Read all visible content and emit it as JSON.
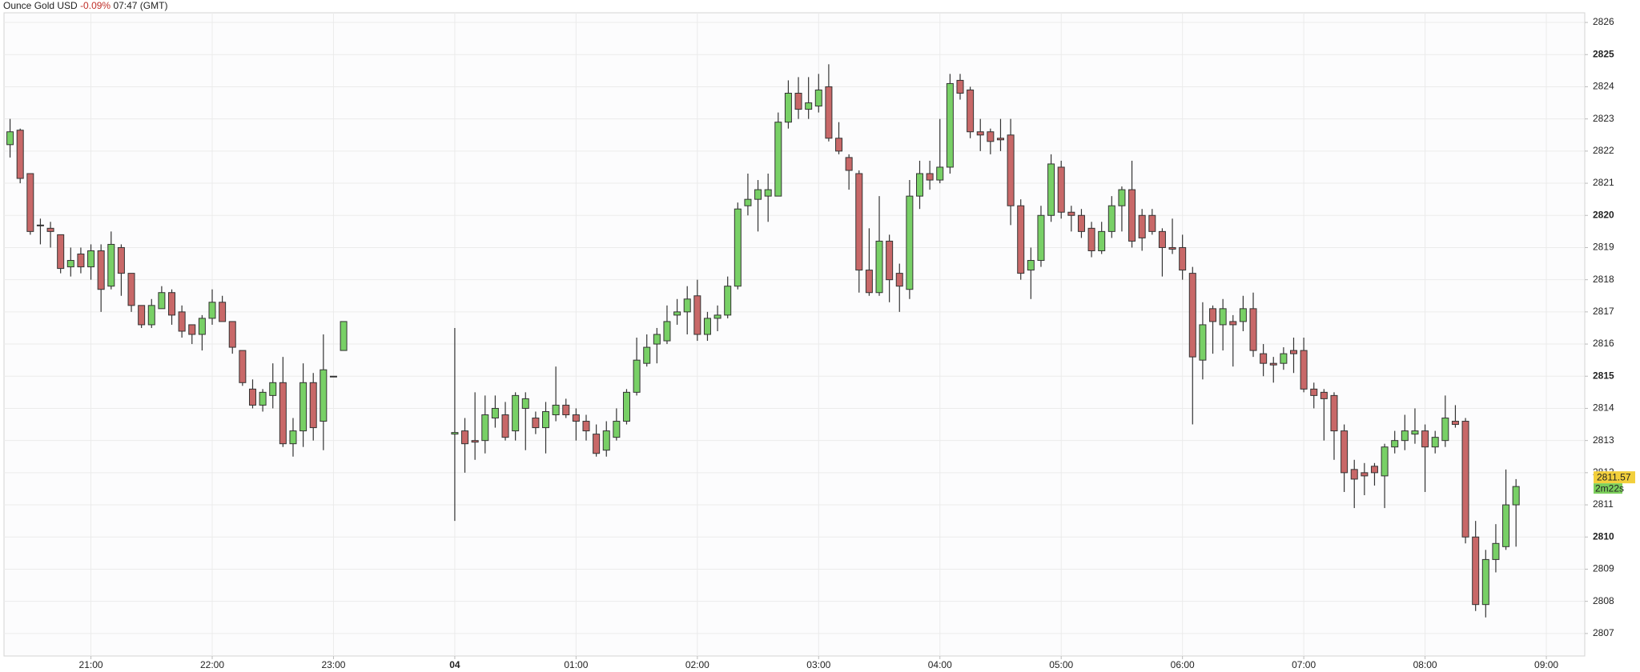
{
  "header": {
    "instrument": "Ounce Gold USD",
    "change": "-0.09%",
    "time": "07:47 (GMT)"
  },
  "chart_data": {
    "type": "candlestick",
    "up_color": "#78d066",
    "down_color": "#c86868",
    "grid": true,
    "xlim": [
      1217,
      1999
    ],
    "xticks": [
      {
        "value": 1260,
        "label": "21:00"
      },
      {
        "value": 1320,
        "label": "22:00"
      },
      {
        "value": 1380,
        "label": "23:00"
      },
      {
        "value": 1440,
        "label": "04"
      },
      {
        "value": 1500,
        "label": "01:00"
      },
      {
        "value": 1560,
        "label": "02:00"
      },
      {
        "value": 1620,
        "label": "03:00"
      },
      {
        "value": 1680,
        "label": "04:00"
      },
      {
        "value": 1740,
        "label": "05:00"
      },
      {
        "value": 1800,
        "label": "06:00"
      },
      {
        "value": 1860,
        "label": "07:00"
      },
      {
        "value": 1920,
        "label": "08:00"
      },
      {
        "value": 1980,
        "label": "09:00"
      }
    ],
    "ylim": [
      2806.3,
      2826.3
    ],
    "yticks": [
      2807,
      2808,
      2809,
      2810,
      2811,
      2812,
      2813,
      2814,
      2815,
      2816,
      2817,
      2818,
      2819,
      2820,
      2821,
      2822,
      2823,
      2824,
      2825,
      2826
    ],
    "last_price": 2811.57,
    "countdown": "2m22s",
    "x": [
      1220,
      1225,
      1230,
      1235,
      1240,
      1245,
      1250,
      1255,
      1260,
      1265,
      1270,
      1275,
      1280,
      1285,
      1290,
      1295,
      1300,
      1305,
      1310,
      1315,
      1320,
      1325,
      1330,
      1335,
      1340,
      1345,
      1350,
      1355,
      1360,
      1365,
      1370,
      1375,
      1380,
      1385,
      1440,
      1445,
      1450,
      1455,
      1460,
      1465,
      1470,
      1475,
      1480,
      1485,
      1490,
      1495,
      1500,
      1505,
      1510,
      1515,
      1520,
      1525,
      1530,
      1535,
      1540,
      1545,
      1550,
      1555,
      1560,
      1565,
      1570,
      1575,
      1580,
      1585,
      1590,
      1595,
      1600,
      1605,
      1610,
      1615,
      1620,
      1625,
      1630,
      1635,
      1640,
      1645,
      1650,
      1655,
      1660,
      1665,
      1670,
      1675,
      1680,
      1685,
      1690,
      1695,
      1700,
      1705,
      1710,
      1715,
      1720,
      1725,
      1730,
      1735,
      1740,
      1745,
      1750,
      1755,
      1760,
      1765,
      1770,
      1775,
      1780,
      1785,
      1790,
      1795,
      1800,
      1805,
      1810,
      1815,
      1820,
      1825,
      1830,
      1835,
      1840,
      1845,
      1850,
      1855,
      1860,
      1865,
      1870,
      1875,
      1880,
      1885,
      1890,
      1895,
      1900,
      1905,
      1910,
      1915,
      1920,
      1925,
      1930,
      1935,
      1940,
      1945,
      1950,
      1955,
      1960,
      1965
    ],
    "open": [
      2822.2,
      2822.65,
      2821.3,
      2819.7,
      2819.6,
      2819.4,
      2818.4,
      2818.8,
      2818.4,
      2818.9,
      2817.8,
      2819.0,
      2818.2,
      2817.2,
      2816.6,
      2817.1,
      2817.6,
      2817.0,
      2816.6,
      2816.3,
      2816.8,
      2817.3,
      2816.7,
      2815.8,
      2814.6,
      2814.1,
      2814.4,
      2814.8,
      2812.9,
      2813.3,
      2814.8,
      2813.6,
      2815.0,
      2815.8,
      2813.2,
      2813.3,
      2813.0,
      2813.0,
      2813.7,
      2813.8,
      2813.3,
      2814.0,
      2813.7,
      2813.4,
      2813.8,
      2814.1,
      2813.8,
      2813.6,
      2813.2,
      2812.7,
      2813.1,
      2813.6,
      2814.5,
      2815.4,
      2816.0,
      2816.1,
      2816.9,
      2817.0,
      2817.5,
      2816.3,
      2816.8,
      2816.9,
      2817.8,
      2820.3,
      2820.5,
      2820.6,
      2820.6,
      2822.9,
      2823.8,
      2823.3,
      2823.4,
      2824.0,
      2822.4,
      2821.8,
      2821.3,
      2818.3,
      2817.6,
      2819.2,
      2818.2,
      2817.7,
      2820.6,
      2821.3,
      2821.1,
      2821.5,
      2824.2,
      2823.9,
      2822.6,
      2822.6,
      2822.4,
      2822.5,
      2820.3,
      2818.3,
      2818.6,
      2820.0,
      2821.5,
      2820.1,
      2820.0,
      2819.6,
      2818.9,
      2819.5,
      2820.3,
      2820.8,
      2820.0,
      2820.0,
      2819.5,
      2819.0,
      2819.0,
      2818.2,
      2815.5,
      2817.1,
      2816.6,
      2816.7,
      2816.7,
      2817.1,
      2815.7,
      2815.4,
      2815.4,
      2815.8,
      2815.8,
      2814.6,
      2814.5,
      2814.4,
      2813.3,
      2812.1,
      2812.0,
      2812.2,
      2811.9,
      2812.8,
      2813.0,
      2813.2,
      2813.3,
      2812.8,
      2813.0,
      2813.6,
      2813.6,
      2810.0,
      2807.9,
      2809.3,
      2809.7,
      2811.0
    ],
    "high": [
      2823.0,
      2822.7,
      2821.3,
      2819.9,
      2819.8,
      2819.4,
      2819.0,
      2819.0,
      2819.1,
      2819.1,
      2819.5,
      2819.1,
      2818.2,
      2817.2,
      2817.4,
      2817.8,
      2817.7,
      2817.2,
      2816.6,
      2816.9,
      2817.7,
      2817.5,
      2816.7,
      2815.8,
      2814.9,
      2814.6,
      2815.4,
      2815.6,
      2813.7,
      2815.4,
      2815.1,
      2816.3,
      2815.0,
      2816.7,
      2816.5,
      2813.7,
      2814.5,
      2814.4,
      2814.4,
      2814.2,
      2814.5,
      2814.5,
      2813.9,
      2814.2,
      2815.3,
      2814.3,
      2814.0,
      2813.8,
      2813.5,
      2813.6,
      2814.0,
      2814.6,
      2816.2,
      2816.3,
      2816.5,
      2817.2,
      2817.4,
      2817.8,
      2818.0,
      2817.0,
      2817.2,
      2818.1,
      2820.4,
      2821.3,
      2821.1,
      2821.3,
      2823.2,
      2824.2,
      2824.3,
      2824.3,
      2824.4,
      2824.7,
      2822.9,
      2821.9,
      2821.4,
      2819.6,
      2820.6,
      2819.4,
      2818.5,
      2821.1,
      2821.7,
      2821.7,
      2823.0,
      2824.4,
      2824.4,
      2824.0,
      2823.0,
      2822.7,
      2823.0,
      2823.0,
      2820.5,
      2819.0,
      2820.3,
      2821.9,
      2821.7,
      2820.3,
      2820.2,
      2819.8,
      2819.8,
      2820.6,
      2820.9,
      2821.7,
      2820.2,
      2820.2,
      2819.6,
      2819.9,
      2819.4,
      2818.4,
      2817.3,
      2817.2,
      2817.4,
      2816.9,
      2817.5,
      2817.6,
      2816.0,
      2815.6,
      2815.9,
      2816.2,
      2816.2,
      2814.8,
      2814.6,
      2814.5,
      2813.5,
      2812.4,
      2812.3,
      2812.3,
      2812.9,
      2813.3,
      2813.8,
      2814.0,
      2813.5,
      2813.3,
      2814.4,
      2814.1,
      2813.7,
      2810.5,
      2809.6,
      2810.4,
      2812.1,
      2811.8
    ],
    "low": [
      2821.8,
      2821.0,
      2819.4,
      2819.1,
      2819.0,
      2818.2,
      2818.1,
      2818.2,
      2818.0,
      2817.0,
      2817.7,
      2817.5,
      2817.0,
      2816.5,
      2816.5,
      2817.1,
      2816.6,
      2816.2,
      2816.0,
      2815.8,
      2816.6,
      2816.7,
      2815.7,
      2814.7,
      2814.0,
      2813.9,
      2814.0,
      2812.8,
      2812.5,
      2812.8,
      2813.0,
      2812.7,
      2815.0,
      2815.8,
      2810.5,
      2812.0,
      2812.4,
      2812.6,
      2813.4,
      2813.0,
      2813.0,
      2812.7,
      2813.2,
      2812.6,
      2813.6,
      2813.7,
      2813.0,
      2813.0,
      2812.5,
      2812.5,
      2813.0,
      2813.5,
      2814.4,
      2815.3,
      2815.4,
      2816.0,
      2816.6,
      2816.3,
      2816.1,
      2816.1,
      2816.4,
      2816.8,
      2817.7,
      2820.0,
      2819.5,
      2819.8,
      2820.6,
      2822.7,
      2823.0,
      2823.0,
      2823.2,
      2822.3,
      2821.9,
      2820.8,
      2817.6,
      2817.5,
      2817.5,
      2817.3,
      2817.0,
      2817.4,
      2820.2,
      2820.8,
      2821.0,
      2821.3,
      2823.6,
      2822.4,
      2822.0,
      2821.9,
      2822.0,
      2819.7,
      2818.0,
      2817.4,
      2818.4,
      2819.8,
      2819.9,
      2819.5,
      2819.3,
      2818.7,
      2818.8,
      2819.3,
      2819.5,
      2819.0,
      2818.9,
      2819.4,
      2818.1,
      2818.8,
      2818.0,
      2813.5,
      2814.9,
      2815.7,
      2815.8,
      2815.3,
      2816.4,
      2815.6,
      2815.0,
      2814.8,
      2815.2,
      2815.1,
      2814.5,
      2814.0,
      2813.0,
      2812.4,
      2811.4,
      2810.9,
      2811.3,
      2811.6,
      2810.9,
      2812.6,
      2812.7,
      2812.9,
      2811.4,
      2812.6,
      2812.8,
      2813.4,
      2809.8,
      2807.7,
      2807.5,
      2808.9,
      2809.6,
      2809.7
    ],
    "close": [
      2822.6,
      2821.15,
      2819.5,
      2819.7,
      2819.5,
      2818.35,
      2818.6,
      2818.4,
      2818.9,
      2817.7,
      2819.1,
      2818.2,
      2817.2,
      2816.6,
      2817.2,
      2817.6,
      2816.9,
      2816.4,
      2816.3,
      2816.8,
      2817.3,
      2816.7,
      2815.9,
      2814.8,
      2814.1,
      2814.5,
      2814.8,
      2812.9,
      2813.3,
      2814.8,
      2813.4,
      2815.2,
      2815.0,
      2816.7,
      2813.25,
      2812.9,
      2812.95,
      2813.8,
      2814.0,
      2813.1,
      2814.4,
      2814.3,
      2813.4,
      2813.9,
      2814.1,
      2813.8,
      2813.6,
      2813.3,
      2812.6,
      2813.3,
      2813.6,
      2814.5,
      2815.5,
      2815.9,
      2816.3,
      2816.7,
      2817.0,
      2817.4,
      2816.3,
      2816.8,
      2816.9,
      2817.8,
      2820.2,
      2820.5,
      2820.8,
      2820.8,
      2822.9,
      2823.8,
      2823.3,
      2823.5,
      2823.9,
      2822.4,
      2822.0,
      2821.4,
      2818.3,
      2817.6,
      2819.2,
      2818.0,
      2817.8,
      2820.6,
      2821.3,
      2821.1,
      2821.5,
      2824.1,
      2823.8,
      2822.6,
      2822.5,
      2822.3,
      2822.35,
      2820.3,
      2818.2,
      2818.6,
      2820.0,
      2821.6,
      2820.1,
      2820.0,
      2819.5,
      2818.9,
      2819.5,
      2820.3,
      2820.8,
      2819.2,
      2819.3,
      2819.5,
      2819.0,
      2818.95,
      2818.3,
      2815.6,
      2816.6,
      2816.7,
      2817.1,
      2816.6,
      2817.1,
      2815.8,
      2815.4,
      2815.35,
      2815.7,
      2815.7,
      2814.6,
      2814.4,
      2814.3,
      2813.3,
      2812.0,
      2811.8,
      2811.9,
      2812.0,
      2812.8,
      2813.0,
      2813.3,
      2813.3,
      2812.8,
      2813.1,
      2813.7,
      2813.5,
      2810.0,
      2807.9,
      2809.3,
      2809.8,
      2811.0,
      2811.57
    ]
  }
}
